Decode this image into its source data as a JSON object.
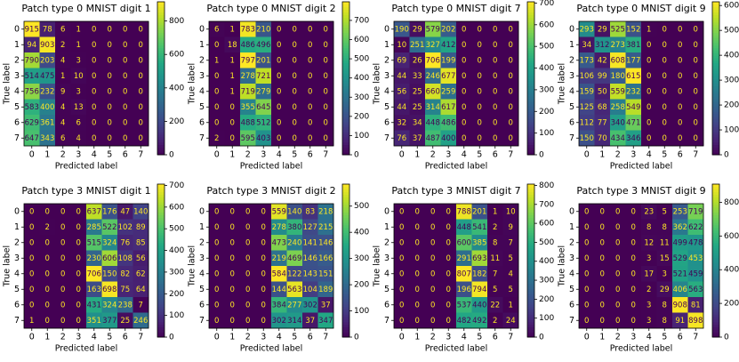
{
  "chart_data": [
    {
      "type": "heatmap",
      "title": "Patch type 0 MNIST digit 1",
      "xlabel": "Predicted label",
      "ylabel": "True label",
      "xticks": [
        0,
        1,
        2,
        3,
        4,
        5,
        6,
        7
      ],
      "yticks": [
        0,
        1,
        2,
        3,
        4,
        5,
        6,
        7
      ],
      "colormap": "viridis",
      "clim": [
        0,
        915
      ],
      "cticks": [
        0,
        200,
        400,
        600,
        800
      ],
      "values": [
        [
          915,
          78,
          6,
          1,
          0,
          0,
          0,
          0
        ],
        [
          94,
          903,
          2,
          1,
          0,
          0,
          0,
          0
        ],
        [
          790,
          203,
          4,
          3,
          0,
          0,
          0,
          0
        ],
        [
          514,
          475,
          1,
          10,
          0,
          0,
          0,
          0
        ],
        [
          756,
          232,
          9,
          3,
          0,
          0,
          0,
          0
        ],
        [
          583,
          400,
          4,
          13,
          0,
          0,
          0,
          0
        ],
        [
          629,
          361,
          4,
          6,
          0,
          0,
          0,
          0
        ],
        [
          647,
          343,
          6,
          4,
          0,
          0,
          0,
          0
        ]
      ]
    },
    {
      "type": "heatmap",
      "title": "Patch type 0 MNIST digit 2",
      "xlabel": "Predicted label",
      "ylabel": "True label",
      "xticks": [
        0,
        1,
        2,
        3,
        4,
        5,
        6,
        7
      ],
      "yticks": [
        0,
        1,
        2,
        3,
        4,
        5,
        6,
        7
      ],
      "colormap": "viridis",
      "clim": [
        0,
        797
      ],
      "cticks": [
        0,
        100,
        200,
        300,
        400,
        500,
        600,
        700
      ],
      "values": [
        [
          6,
          1,
          783,
          210,
          0,
          0,
          0,
          0
        ],
        [
          0,
          18,
          486,
          496,
          0,
          0,
          0,
          0
        ],
        [
          1,
          1,
          797,
          201,
          0,
          0,
          0,
          0
        ],
        [
          0,
          1,
          278,
          721,
          0,
          0,
          0,
          0
        ],
        [
          0,
          1,
          719,
          279,
          0,
          0,
          0,
          0
        ],
        [
          0,
          0,
          355,
          645,
          0,
          0,
          0,
          0
        ],
        [
          0,
          0,
          488,
          512,
          0,
          0,
          0,
          0
        ],
        [
          2,
          0,
          595,
          403,
          0,
          0,
          0,
          0
        ]
      ]
    },
    {
      "type": "heatmap",
      "title": "Patch type 0 MNIST digit 7",
      "xlabel": "Predicted label",
      "ylabel": "True label",
      "xticks": [
        0,
        1,
        2,
        3,
        4,
        5,
        6,
        7
      ],
      "yticks": [
        0,
        1,
        2,
        3,
        4,
        5,
        6,
        7
      ],
      "colormap": "viridis",
      "clim": [
        0,
        706
      ],
      "cticks": [
        0,
        100,
        200,
        300,
        400,
        500,
        600,
        700
      ],
      "values": [
        [
          190,
          29,
          579,
          202,
          0,
          0,
          0,
          0
        ],
        [
          10,
          251,
          327,
          412,
          0,
          0,
          0,
          0
        ],
        [
          69,
          26,
          706,
          199,
          0,
          0,
          0,
          0
        ],
        [
          44,
          33,
          246,
          677,
          0,
          0,
          0,
          0
        ],
        [
          56,
          25,
          660,
          259,
          0,
          0,
          0,
          0
        ],
        [
          44,
          25,
          314,
          617,
          0,
          0,
          0,
          0
        ],
        [
          32,
          34,
          448,
          486,
          0,
          0,
          0,
          0
        ],
        [
          76,
          37,
          487,
          400,
          0,
          0,
          0,
          0
        ]
      ]
    },
    {
      "type": "heatmap",
      "title": "Patch type 0 MNIST digit 9",
      "xlabel": "Predicted label",
      "ylabel": "True label",
      "xticks": [
        0,
        1,
        2,
        3,
        4,
        5,
        6,
        7
      ],
      "yticks": [
        0,
        1,
        2,
        3,
        4,
        5,
        6,
        7
      ],
      "colormap": "viridis",
      "clim": [
        0,
        615
      ],
      "cticks": [
        0,
        100,
        200,
        300,
        400,
        500,
        600
      ],
      "values": [
        [
          293,
          29,
          525,
          152,
          1,
          0,
          0,
          0
        ],
        [
          34,
          312,
          273,
          381,
          0,
          0,
          0,
          0
        ],
        [
          173,
          42,
          608,
          177,
          0,
          0,
          0,
          0
        ],
        [
          106,
          99,
          180,
          615,
          0,
          0,
          0,
          0
        ],
        [
          159,
          50,
          559,
          232,
          0,
          0,
          0,
          0
        ],
        [
          125,
          68,
          258,
          549,
          0,
          0,
          0,
          0
        ],
        [
          112,
          77,
          340,
          471,
          0,
          0,
          0,
          0
        ],
        [
          150,
          70,
          434,
          346,
          0,
          0,
          0,
          0
        ]
      ]
    },
    {
      "type": "heatmap",
      "title": "Patch type 3 MNIST digit 1",
      "xlabel": "Predicted label",
      "ylabel": "True label",
      "xticks": [
        0,
        1,
        2,
        3,
        4,
        5,
        6,
        7
      ],
      "yticks": [
        0,
        1,
        2,
        3,
        4,
        5,
        6,
        7
      ],
      "colormap": "viridis",
      "clim": [
        0,
        706
      ],
      "cticks": [
        0,
        100,
        200,
        300,
        400,
        500,
        600,
        700
      ],
      "values": [
        [
          0,
          0,
          0,
          0,
          637,
          176,
          47,
          140
        ],
        [
          0,
          2,
          0,
          0,
          285,
          522,
          102,
          89
        ],
        [
          0,
          0,
          0,
          0,
          515,
          324,
          76,
          85
        ],
        [
          0,
          0,
          0,
          0,
          230,
          606,
          108,
          56
        ],
        [
          0,
          0,
          0,
          0,
          706,
          150,
          82,
          62
        ],
        [
          0,
          0,
          0,
          0,
          163,
          698,
          75,
          64
        ],
        [
          0,
          0,
          0,
          0,
          431,
          324,
          238,
          7
        ],
        [
          1,
          0,
          0,
          0,
          351,
          377,
          25,
          246
        ]
      ]
    },
    {
      "type": "heatmap",
      "title": "Patch type 3 MNIST digit 2",
      "xlabel": "Predicted label",
      "ylabel": "True label",
      "xticks": [
        0,
        1,
        2,
        3,
        4,
        5,
        6,
        7
      ],
      "yticks": [
        0,
        1,
        2,
        3,
        4,
        5,
        6,
        7
      ],
      "colormap": "viridis",
      "clim": [
        0,
        584
      ],
      "cticks": [
        0,
        100,
        200,
        300,
        400,
        500
      ],
      "values": [
        [
          0,
          0,
          0,
          0,
          559,
          140,
          83,
          218
        ],
        [
          0,
          0,
          0,
          0,
          278,
          380,
          127,
          215
        ],
        [
          0,
          0,
          0,
          0,
          473,
          240,
          141,
          146
        ],
        [
          0,
          0,
          0,
          0,
          219,
          469,
          146,
          166
        ],
        [
          0,
          0,
          0,
          0,
          584,
          122,
          143,
          151
        ],
        [
          0,
          0,
          0,
          0,
          144,
          563,
          104,
          189
        ],
        [
          0,
          0,
          0,
          0,
          384,
          277,
          302,
          37
        ],
        [
          0,
          0,
          0,
          0,
          302,
          314,
          37,
          347
        ]
      ]
    },
    {
      "type": "heatmap",
      "title": "Patch type 3 MNIST digit 7",
      "xlabel": "Predicted label",
      "ylabel": "True label",
      "xticks": [
        0,
        1,
        2,
        3,
        4,
        5,
        6,
        7
      ],
      "yticks": [
        0,
        1,
        2,
        3,
        4,
        5,
        6,
        7
      ],
      "colormap": "viridis",
      "clim": [
        0,
        807
      ],
      "cticks": [
        0,
        100,
        200,
        300,
        400,
        500,
        600,
        700,
        800
      ],
      "values": [
        [
          0,
          0,
          0,
          0,
          788,
          201,
          1,
          10
        ],
        [
          0,
          0,
          0,
          0,
          448,
          541,
          2,
          9
        ],
        [
          0,
          0,
          0,
          0,
          600,
          385,
          8,
          7
        ],
        [
          0,
          0,
          0,
          0,
          291,
          693,
          11,
          5
        ],
        [
          0,
          0,
          0,
          0,
          807,
          182,
          7,
          4
        ],
        [
          0,
          0,
          0,
          0,
          196,
          794,
          5,
          5
        ],
        [
          0,
          0,
          0,
          0,
          537,
          440,
          22,
          1
        ],
        [
          0,
          0,
          0,
          0,
          482,
          492,
          2,
          24
        ]
      ]
    },
    {
      "type": "heatmap",
      "title": "Patch type 3 MNIST digit 9",
      "xlabel": "Predicted label",
      "ylabel": "True label",
      "xticks": [
        0,
        1,
        2,
        3,
        4,
        5,
        6,
        7
      ],
      "yticks": [
        0,
        1,
        2,
        3,
        4,
        5,
        6,
        7
      ],
      "colormap": "viridis",
      "clim": [
        0,
        908
      ],
      "cticks": [
        0,
        200,
        400,
        600,
        800
      ],
      "values": [
        [
          0,
          0,
          0,
          0,
          23,
          5,
          253,
          719
        ],
        [
          0,
          0,
          0,
          0,
          8,
          8,
          362,
          622
        ],
        [
          0,
          0,
          0,
          0,
          12,
          11,
          499,
          478
        ],
        [
          0,
          0,
          0,
          0,
          3,
          15,
          529,
          453
        ],
        [
          0,
          0,
          0,
          0,
          17,
          3,
          521,
          459
        ],
        [
          0,
          0,
          0,
          0,
          2,
          29,
          406,
          563
        ],
        [
          0,
          0,
          0,
          0,
          3,
          8,
          908,
          81
        ],
        [
          0,
          0,
          0,
          0,
          3,
          8,
          91,
          898
        ]
      ]
    }
  ]
}
